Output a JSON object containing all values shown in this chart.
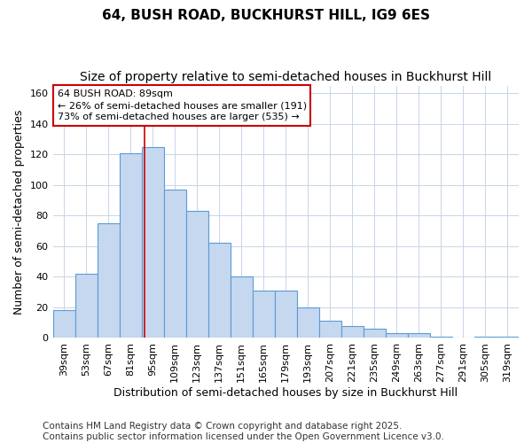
{
  "title": "64, BUSH ROAD, BUCKHURST HILL, IG9 6ES",
  "subtitle": "Size of property relative to semi-detached houses in Buckhurst Hill",
  "xlabel": "Distribution of semi-detached houses by size in Buckhurst Hill",
  "ylabel": "Number of semi-detached properties",
  "categories": [
    "39sqm",
    "53sqm",
    "67sqm",
    "81sqm",
    "95sqm",
    "109sqm",
    "123sqm",
    "137sqm",
    "151sqm",
    "165sqm",
    "179sqm",
    "193sqm",
    "207sqm",
    "221sqm",
    "235sqm",
    "249sqm",
    "263sqm",
    "277sqm",
    "291sqm",
    "305sqm",
    "319sqm"
  ],
  "values": [
    18,
    42,
    75,
    121,
    125,
    97,
    83,
    62,
    40,
    31,
    31,
    20,
    11,
    8,
    6,
    3,
    3,
    1,
    0,
    1,
    1
  ],
  "bar_color": "#c5d8f0",
  "bar_edge_color": "#5b9bd5",
  "highlight_label": "64 BUSH ROAD: 89sqm",
  "annotation_line1": "← 26% of semi-detached houses are smaller (191)",
  "annotation_line2": "73% of semi-detached houses are larger (535) →",
  "annotation_box_color": "#ffffff",
  "annotation_box_edge": "#cc0000",
  "vline_color": "#cc0000",
  "vline_x": 3.64,
  "ylim": [
    0,
    165
  ],
  "yticks": [
    0,
    20,
    40,
    60,
    80,
    100,
    120,
    140,
    160
  ],
  "grid_color": "#c8d4e8",
  "background_color": "#ffffff",
  "footer": "Contains HM Land Registry data © Crown copyright and database right 2025.\nContains public sector information licensed under the Open Government Licence v3.0.",
  "title_fontsize": 11,
  "subtitle_fontsize": 10,
  "xlabel_fontsize": 9,
  "ylabel_fontsize": 9,
  "tick_fontsize": 8,
  "footer_fontsize": 7.5
}
